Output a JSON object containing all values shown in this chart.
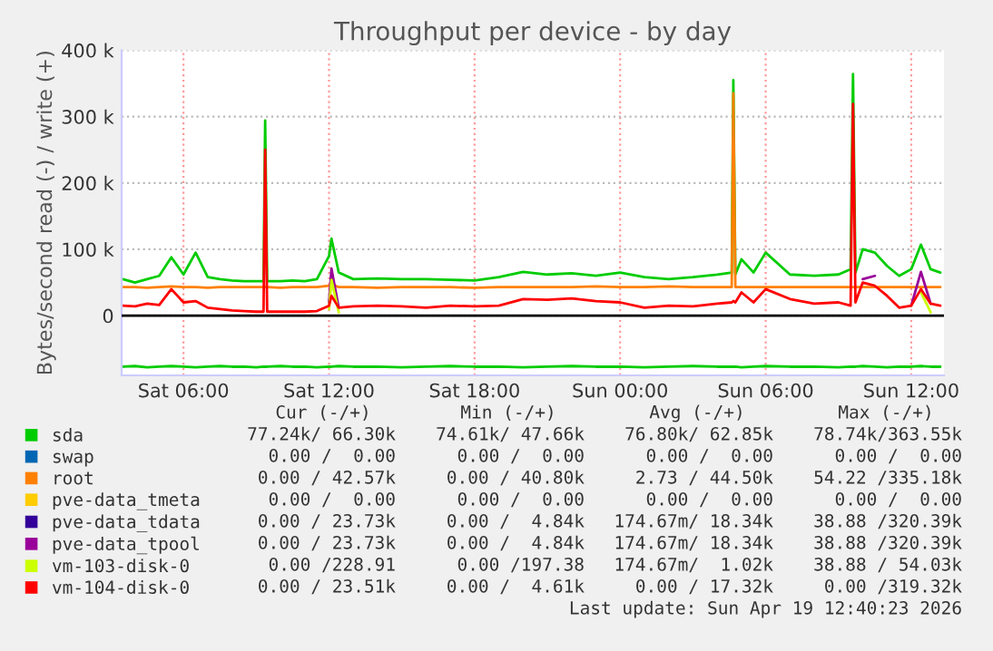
{
  "chart_data": {
    "type": "line",
    "title": "Throughput per device - by day",
    "ylabel": "Bytes/second read (-) / write (+)",
    "x": [
      "2026-04-18T03:30",
      "2026-04-18T04:00",
      "2026-04-18T04:30",
      "2026-04-18T05:00",
      "2026-04-18T05:30",
      "2026-04-18T06:00",
      "2026-04-18T06:30",
      "2026-04-18T07:00",
      "2026-04-18T07:30",
      "2026-04-18T08:00",
      "2026-04-18T08:30",
      "2026-04-18T09:00",
      "2026-04-18T09:18",
      "2026-04-18T09:22",
      "2026-04-18T09:27",
      "2026-04-18T10:00",
      "2026-04-18T10:30",
      "2026-04-18T11:00",
      "2026-04-18T11:30",
      "2026-04-18T12:00",
      "2026-04-18T12:06",
      "2026-04-18T12:24",
      "2026-04-18T13:00",
      "2026-04-18T14:00",
      "2026-04-18T15:00",
      "2026-04-18T16:00",
      "2026-04-18T17:00",
      "2026-04-18T18:00",
      "2026-04-18T19:00",
      "2026-04-18T20:00",
      "2026-04-18T21:00",
      "2026-04-18T22:00",
      "2026-04-18T23:00",
      "2026-04-19T00:00",
      "2026-04-19T01:00",
      "2026-04-19T02:00",
      "2026-04-19T03:00",
      "2026-04-19T04:00",
      "2026-04-19T04:36",
      "2026-04-19T04:40",
      "2026-04-19T04:45",
      "2026-04-19T05:00",
      "2026-04-19T05:30",
      "2026-04-19T06:00",
      "2026-04-19T07:00",
      "2026-04-19T08:00",
      "2026-04-19T09:00",
      "2026-04-19T09:30",
      "2026-04-19T09:36",
      "2026-04-19T09:42",
      "2026-04-19T10:00",
      "2026-04-19T10:30",
      "2026-04-19T11:00",
      "2026-04-19T11:30",
      "2026-04-19T12:00",
      "2026-04-19T12:24",
      "2026-04-19T12:48",
      "2026-04-19T13:12"
    ],
    "xlim": [
      "2026-04-18T03:27",
      "2026-04-19T13:21"
    ],
    "xticks": [
      {
        "value": "2026-04-18T06:00",
        "label": "Sat 06:00"
      },
      {
        "value": "2026-04-18T12:00",
        "label": "Sat 12:00"
      },
      {
        "value": "2026-04-18T18:00",
        "label": "Sat 18:00"
      },
      {
        "value": "2026-04-19T00:00",
        "label": "Sun 00:00"
      },
      {
        "value": "2026-04-19T06:00",
        "label": "Sun 06:00"
      },
      {
        "value": "2026-04-19T12:00",
        "label": "Sun 12:00"
      }
    ],
    "ylim": [
      -90000,
      400000
    ],
    "yticks": [
      0,
      {
        "value": 100000,
        "label": "100 k"
      },
      {
        "value": 200000,
        "label": "200 k"
      },
      {
        "value": 300000,
        "label": "300 k"
      },
      {
        "value": 400000,
        "label": "400 k"
      }
    ],
    "grid": true,
    "legend": "bottom",
    "ref_lines": [
      {
        "axis": "y",
        "value": 0,
        "color": "#000000"
      }
    ],
    "series": [
      {
        "name": "sda",
        "color": "#00cc00",
        "values": [
          55000,
          50000,
          55000,
          60000,
          88000,
          62000,
          95000,
          58000,
          55000,
          53000,
          52000,
          52000,
          52000,
          294000,
          52000,
          52000,
          53000,
          52000,
          55000,
          90000,
          116000,
          65000,
          55000,
          56000,
          55000,
          55000,
          54000,
          53000,
          58000,
          66000,
          62000,
          64000,
          60000,
          65000,
          58000,
          55000,
          58000,
          62000,
          65000,
          355000,
          62000,
          85000,
          65000,
          95000,
          62000,
          60000,
          62000,
          70000,
          364000,
          65000,
          100000,
          95000,
          75000,
          60000,
          70000,
          107000,
          70000,
          65000
        ]
      },
      {
        "color": "#00cc00",
        "values": [
          -77000,
          -76000,
          -78000,
          -77000,
          -76000,
          -77000,
          -78000,
          -77000,
          -76000,
          -77000,
          -77000,
          -78000,
          -77000,
          -77000,
          -77000,
          -76000,
          -77000,
          -77000,
          -78000,
          -77000,
          -77000,
          -76000,
          -77000,
          -77000,
          -78000,
          -77000,
          -76000,
          -77000,
          -77000,
          -78000,
          -77000,
          -76000,
          -77000,
          -77000,
          -78000,
          -77000,
          -76000,
          -77000,
          -77000,
          -77000,
          -77000,
          -78000,
          -77000,
          -76000,
          -77000,
          -77000,
          -78000,
          -77000,
          -77000,
          -77000,
          -76000,
          -77000,
          -78000,
          -77000,
          -77000,
          -76000,
          -77000,
          -77000
        ]
      },
      {
        "name": "swap",
        "color": "#0066b3",
        "values": [
          null,
          null,
          null,
          null,
          null,
          null,
          null,
          null,
          null,
          null,
          null,
          null,
          null,
          null,
          null,
          null,
          null,
          null,
          null,
          null,
          null,
          null,
          null,
          null,
          null,
          null,
          null,
          null,
          null,
          null,
          null,
          null,
          null,
          null,
          null,
          null,
          null,
          null,
          null,
          null,
          null,
          null,
          null,
          null,
          null,
          null,
          null,
          null,
          null,
          null,
          null,
          null,
          null,
          null,
          null,
          null,
          null,
          null
        ]
      },
      {
        "name": "root",
        "color": "#ff8000",
        "values": [
          43000,
          43000,
          42000,
          43000,
          44000,
          43000,
          43000,
          42000,
          43000,
          43000,
          43000,
          43000,
          43000,
          43000,
          43000,
          42000,
          43000,
          43000,
          43000,
          45000,
          47000,
          43000,
          43000,
          42000,
          43000,
          43000,
          43000,
          42000,
          43000,
          43000,
          43000,
          43000,
          44000,
          43000,
          43000,
          44000,
          43000,
          43000,
          43000,
          335000,
          43000,
          43000,
          43000,
          43000,
          43000,
          43000,
          43000,
          43000,
          43000,
          43000,
          43000,
          43000,
          43000,
          43000,
          43000,
          43000,
          43000,
          43000
        ]
      },
      {
        "name": "pve-data_tmeta",
        "color": "#ffcc00",
        "values": [
          null,
          null,
          null,
          null,
          null,
          null,
          null,
          null,
          null,
          null,
          null,
          null,
          null,
          null,
          null,
          null,
          null,
          null,
          null,
          null,
          null,
          null,
          null,
          null,
          null,
          null,
          null,
          null,
          null,
          null,
          null,
          null,
          null,
          null,
          null,
          null,
          null,
          null,
          null,
          null,
          null,
          null,
          null,
          null,
          null,
          null,
          null,
          null,
          null,
          null,
          null,
          null,
          null,
          null,
          null,
          null,
          null,
          null
        ]
      },
      {
        "name": "pve-data_tdata",
        "color": "#330099",
        "values": [
          null,
          null,
          null,
          null,
          null,
          null,
          null,
          null,
          null,
          null,
          null,
          null,
          null,
          null,
          null,
          null,
          null,
          null,
          null,
          null,
          null,
          null,
          null,
          null,
          null,
          null,
          null,
          null,
          null,
          null,
          null,
          null,
          null,
          null,
          null,
          null,
          null,
          null,
          null,
          null,
          null,
          null,
          null,
          null,
          null,
          null,
          null,
          null,
          null,
          null,
          null,
          null,
          null,
          null,
          null,
          null,
          null,
          null
        ]
      },
      {
        "name": "pve-data_tpool",
        "color": "#990099",
        "values": [
          null,
          null,
          null,
          null,
          null,
          null,
          null,
          null,
          null,
          null,
          null,
          null,
          null,
          null,
          null,
          null,
          null,
          null,
          null,
          20000,
          71000,
          12000,
          null,
          null,
          null,
          null,
          null,
          null,
          null,
          null,
          null,
          null,
          null,
          null,
          null,
          null,
          null,
          null,
          null,
          null,
          null,
          null,
          null,
          null,
          null,
          null,
          null,
          null,
          null,
          null,
          55000,
          60000,
          null,
          null,
          15000,
          66000,
          18000,
          null
        ]
      },
      {
        "name": "vm-103-disk-0",
        "color": "#ccff00",
        "values": [
          null,
          null,
          null,
          null,
          null,
          null,
          null,
          null,
          null,
          null,
          null,
          null,
          null,
          null,
          null,
          null,
          null,
          null,
          null,
          10000,
          54000,
          5000,
          null,
          null,
          null,
          null,
          null,
          null,
          null,
          null,
          null,
          null,
          null,
          null,
          null,
          null,
          null,
          null,
          null,
          null,
          null,
          null,
          null,
          null,
          null,
          null,
          null,
          null,
          null,
          null,
          null,
          null,
          null,
          null,
          null,
          35000,
          5000,
          null
        ]
      },
      {
        "name": "vm-104-disk-0",
        "color": "#ff0000",
        "values": [
          15000,
          14000,
          18000,
          16000,
          40000,
          20000,
          22000,
          12000,
          10000,
          8000,
          7000,
          6000,
          6000,
          250000,
          6000,
          6000,
          6000,
          6000,
          7000,
          15000,
          30000,
          12000,
          14000,
          15000,
          14000,
          12000,
          15000,
          14000,
          15000,
          25000,
          24000,
          26000,
          22000,
          20000,
          12000,
          15000,
          14000,
          18000,
          20000,
          22000,
          20000,
          35000,
          20000,
          40000,
          25000,
          18000,
          20000,
          15000,
          319000,
          20000,
          50000,
          45000,
          30000,
          12000,
          15000,
          40000,
          18000,
          15000
        ]
      }
    ],
    "annotations": [
      "Cur (-/+)",
      "Min (-/+)",
      "Avg (-/+)",
      "Max (-/+)",
      "77.24k/ 66.30k",
      "74.61k/ 47.66k",
      "76.80k/ 62.85k",
      "78.74k/363.55k",
      "0.00 /  0.00",
      "0.00 /  0.00",
      "0.00 /  0.00",
      "0.00 /  0.00",
      "0.00 / 42.57k",
      "0.00 / 40.80k",
      "2.73 / 44.50k",
      "54.22 /335.18k",
      "0.00 /  0.00",
      "0.00 /  0.00",
      "0.00 /  0.00",
      "0.00 /  0.00",
      "0.00 / 23.73k",
      "0.00 /  4.84k",
      "174.67m/ 18.34k",
      "38.88 /320.39k",
      "0.00 / 23.73k",
      "0.00 /  4.84k",
      "174.67m/ 18.34k",
      "38.88 /320.39k",
      "0.00 /228.91",
      "0.00 /197.38",
      "174.67m/  1.02k",
      "38.88 / 54.03k",
      "0.00 / 23.51k",
      "0.00 /  4.61k",
      "0.00 / 17.32k",
      "0.00 /319.32k",
      "Last update: Sun Apr 19 12:40:23 2026"
    ]
  }
}
